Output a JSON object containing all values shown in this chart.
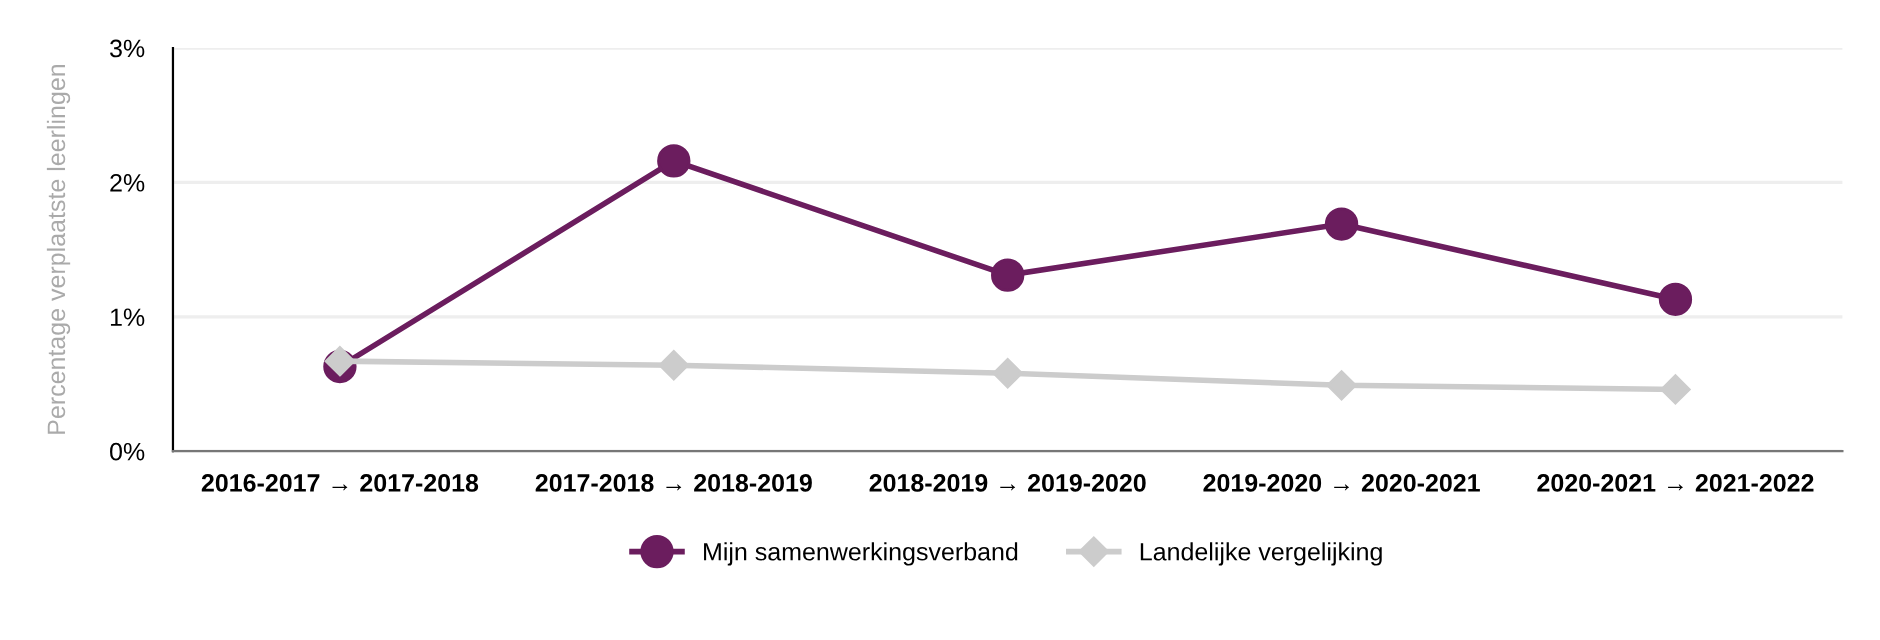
{
  "chart_data": {
    "type": "line",
    "ylabel": "Percentage verplaatste leerlingen",
    "categories": [
      "2016-2017 → 2017-2018",
      "2017-2018 → 2018-2019",
      "2018-2019 → 2019-2020",
      "2019-2020 → 2020-2021",
      "2020-2021 → 2021-2022"
    ],
    "series": [
      {
        "name": "Mijn samenwerkingsverband",
        "color": "#6b1d5e",
        "marker": "circle",
        "values": [
          0.63,
          2.16,
          1.31,
          1.69,
          1.13
        ]
      },
      {
        "name": "Landelijke vergelijking",
        "color": "#cccccc",
        "marker": "diamond",
        "values": [
          0.67,
          0.64,
          0.58,
          0.49,
          0.46
        ]
      }
    ],
    "ylim": [
      0,
      3
    ],
    "yticks": [
      {
        "value": 0,
        "label": "0%"
      },
      {
        "value": 1,
        "label": "1%"
      },
      {
        "value": 2,
        "label": "2%"
      },
      {
        "value": 3,
        "label": "3%"
      }
    ],
    "grid": "y",
    "legend": "bottom"
  }
}
